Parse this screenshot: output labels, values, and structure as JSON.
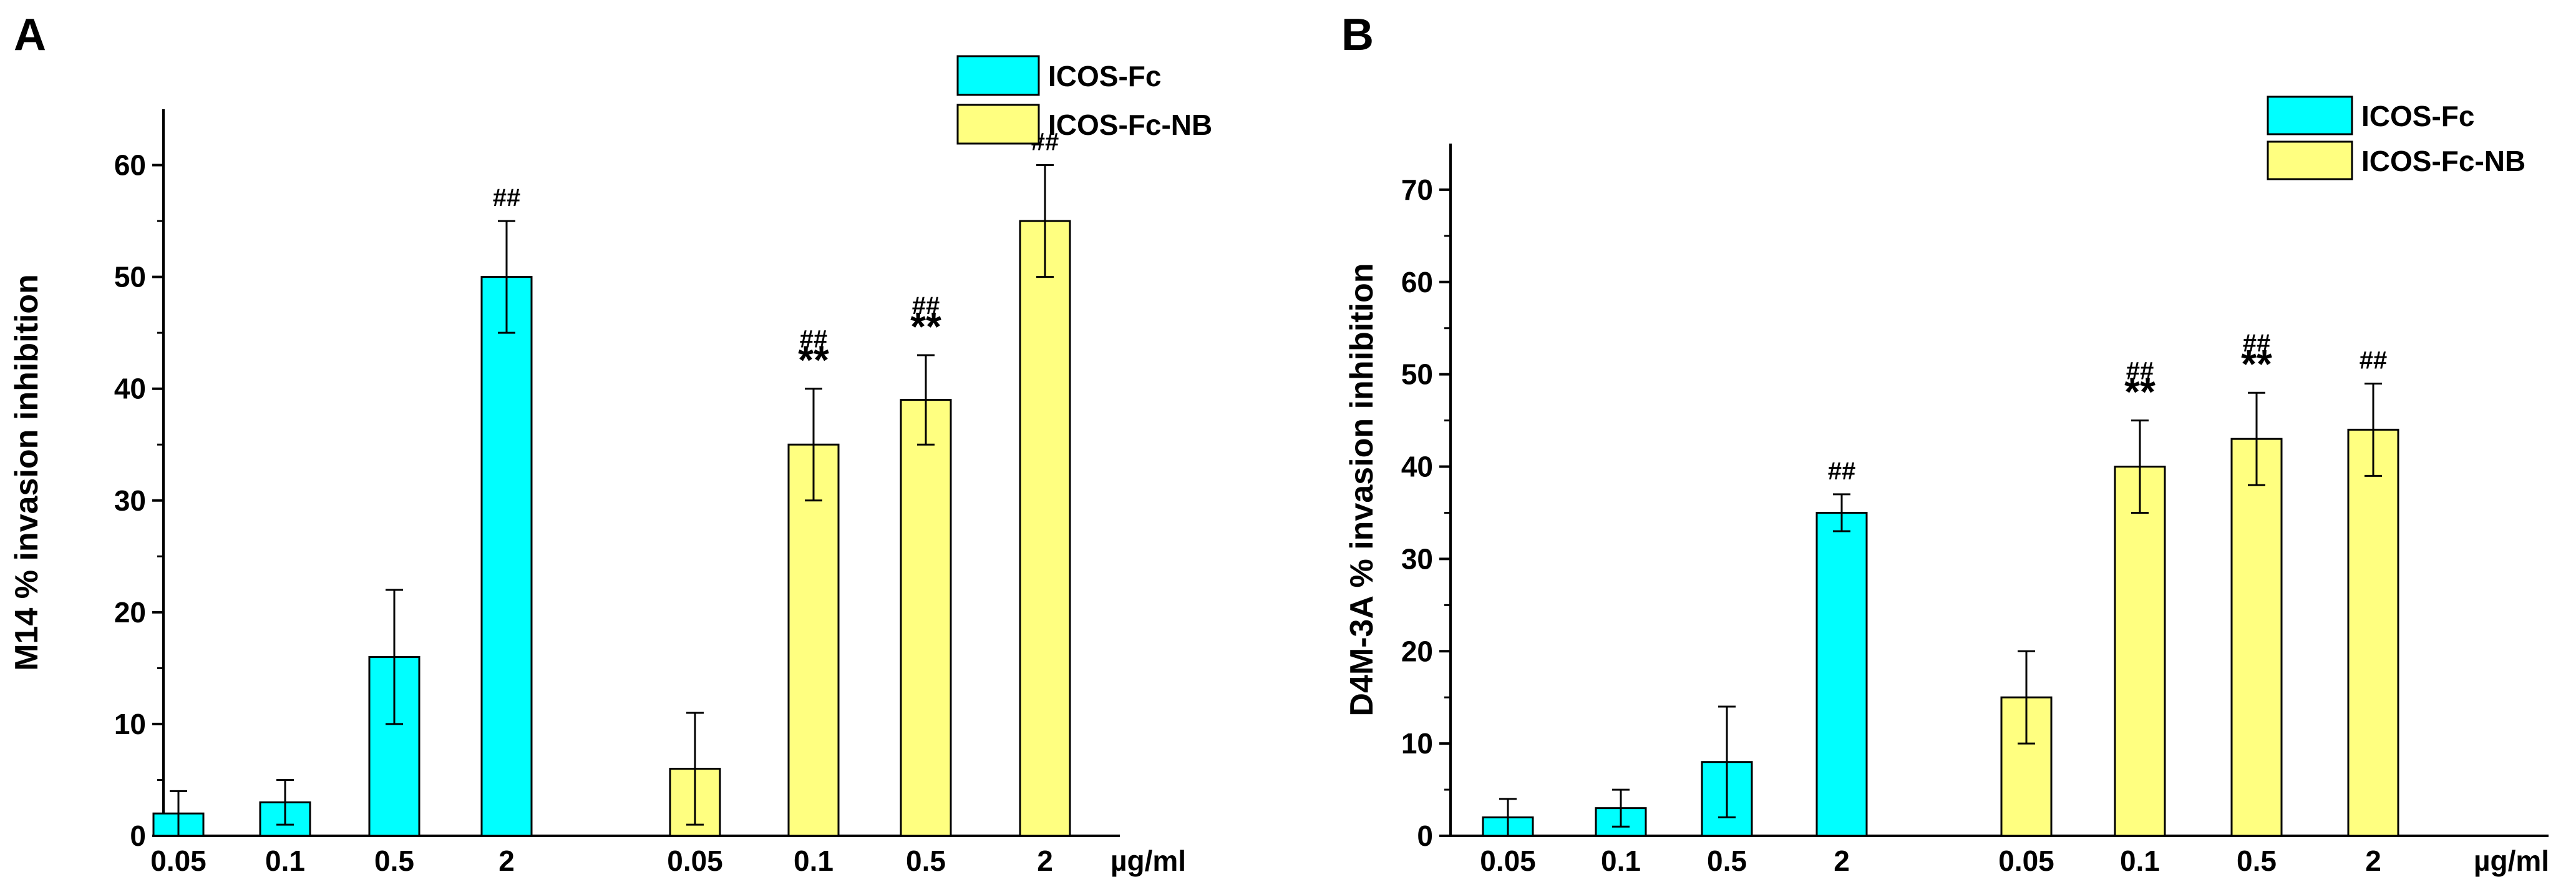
{
  "chart_data": [
    {
      "type": "bar",
      "panel_label": "A",
      "ylabel": "M14 % invasion inhibition",
      "xunit": "µg/ml",
      "ylim": [
        0,
        65
      ],
      "yticks": [
        0,
        10,
        20,
        30,
        40,
        50,
        60
      ],
      "legend_position": "top-right",
      "grid": false,
      "series": [
        {
          "name": "ICOS-Fc",
          "color": "#00FFFF",
          "categories": [
            "0.05",
            "0.1",
            "0.5",
            "2"
          ],
          "values": [
            2,
            3,
            16,
            50
          ],
          "errors": [
            2,
            2,
            6,
            5
          ],
          "annotations": [
            "",
            "",
            "",
            "##"
          ]
        },
        {
          "name": "ICOS-Fc-NB",
          "color": "#FFFF80",
          "categories": [
            "0.05",
            "0.1",
            "0.5",
            "2"
          ],
          "values": [
            6,
            35,
            39,
            55
          ],
          "errors": [
            5,
            5,
            4,
            5
          ],
          "annotations": [
            "",
            "##\n**",
            "##\n**",
            "##"
          ]
        }
      ]
    },
    {
      "type": "bar",
      "panel_label": "B",
      "ylabel": "D4M-3A % invasion inhibition",
      "xunit": "µg/ml",
      "ylim": [
        0,
        75
      ],
      "yticks": [
        0,
        10,
        20,
        30,
        40,
        50,
        60,
        70
      ],
      "legend_position": "top-right",
      "grid": false,
      "series": [
        {
          "name": "ICOS-Fc",
          "color": "#00FFFF",
          "categories": [
            "0.05",
            "0.1",
            "0.5",
            "2"
          ],
          "values": [
            2,
            3,
            8,
            35
          ],
          "errors": [
            2,
            2,
            6,
            2
          ],
          "annotations": [
            "",
            "",
            "",
            "##"
          ]
        },
        {
          "name": "ICOS-Fc-NB",
          "color": "#FFFF80",
          "categories": [
            "0.05",
            "0.1",
            "0.5",
            "2"
          ],
          "values": [
            15,
            40,
            43,
            44
          ],
          "errors": [
            5,
            5,
            5,
            5
          ],
          "annotations": [
            "",
            "##\n**",
            "##\n**",
            "##"
          ]
        }
      ]
    }
  ]
}
